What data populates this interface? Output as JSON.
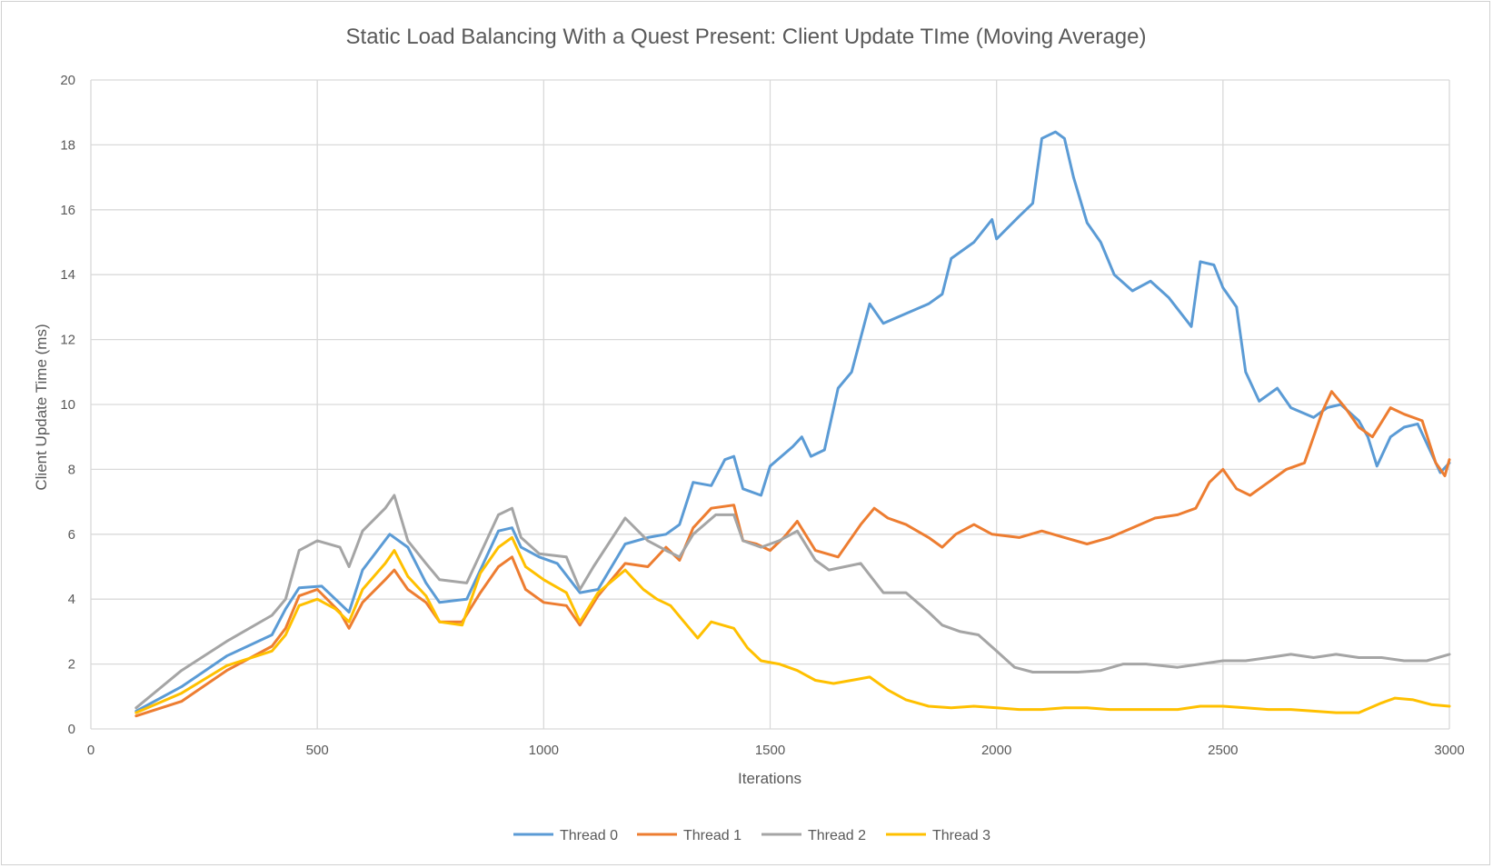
{
  "chart_data": {
    "type": "line",
    "title": "Static Load Balancing With a Quest Present: Client Update TIme (Moving Average)",
    "xlabel": "Iterations",
    "ylabel": "Client Update Time (ms)",
    "xlim": [
      0,
      3000
    ],
    "ylim": [
      0,
      20
    ],
    "x_ticks": [
      0,
      500,
      1000,
      1500,
      2000,
      2500,
      3000
    ],
    "y_ticks": [
      0,
      2,
      4,
      6,
      8,
      10,
      12,
      14,
      16,
      18,
      20
    ],
    "grid": true,
    "legend_position": "bottom",
    "series": [
      {
        "name": "Thread 0",
        "color": "#5b9bd5",
        "points": [
          [
            100,
            0.55
          ],
          [
            200,
            1.3
          ],
          [
            300,
            2.25
          ],
          [
            400,
            2.9
          ],
          [
            430,
            3.7
          ],
          [
            460,
            4.35
          ],
          [
            510,
            4.4
          ],
          [
            540,
            4.0
          ],
          [
            570,
            3.6
          ],
          [
            600,
            4.9
          ],
          [
            660,
            6.0
          ],
          [
            700,
            5.6
          ],
          [
            740,
            4.5
          ],
          [
            770,
            3.9
          ],
          [
            830,
            4.0
          ],
          [
            860,
            4.9
          ],
          [
            900,
            6.1
          ],
          [
            930,
            6.2
          ],
          [
            950,
            5.6
          ],
          [
            990,
            5.3
          ],
          [
            1030,
            5.1
          ],
          [
            1080,
            4.2
          ],
          [
            1120,
            4.3
          ],
          [
            1180,
            5.7
          ],
          [
            1230,
            5.9
          ],
          [
            1270,
            6.0
          ],
          [
            1300,
            6.3
          ],
          [
            1330,
            7.6
          ],
          [
            1370,
            7.5
          ],
          [
            1400,
            8.3
          ],
          [
            1420,
            8.4
          ],
          [
            1440,
            7.4
          ],
          [
            1480,
            7.2
          ],
          [
            1500,
            8.1
          ],
          [
            1550,
            8.7
          ],
          [
            1570,
            9.0
          ],
          [
            1590,
            8.4
          ],
          [
            1620,
            8.6
          ],
          [
            1650,
            10.5
          ],
          [
            1680,
            11.0
          ],
          [
            1720,
            13.1
          ],
          [
            1750,
            12.5
          ],
          [
            1800,
            12.8
          ],
          [
            1850,
            13.1
          ],
          [
            1880,
            13.4
          ],
          [
            1900,
            14.5
          ],
          [
            1950,
            15.0
          ],
          [
            1990,
            15.7
          ],
          [
            2000,
            15.1
          ],
          [
            2050,
            15.8
          ],
          [
            2080,
            16.2
          ],
          [
            2100,
            18.2
          ],
          [
            2130,
            18.4
          ],
          [
            2150,
            18.2
          ],
          [
            2170,
            17.0
          ],
          [
            2200,
            15.6
          ],
          [
            2230,
            15.0
          ],
          [
            2260,
            14.0
          ],
          [
            2300,
            13.5
          ],
          [
            2340,
            13.8
          ],
          [
            2380,
            13.3
          ],
          [
            2430,
            12.4
          ],
          [
            2450,
            14.4
          ],
          [
            2480,
            14.3
          ],
          [
            2500,
            13.6
          ],
          [
            2530,
            13.0
          ],
          [
            2550,
            11.0
          ],
          [
            2580,
            10.1
          ],
          [
            2620,
            10.5
          ],
          [
            2650,
            9.9
          ],
          [
            2700,
            9.6
          ],
          [
            2730,
            9.9
          ],
          [
            2760,
            10.0
          ],
          [
            2800,
            9.5
          ],
          [
            2820,
            9.0
          ],
          [
            2840,
            8.1
          ],
          [
            2870,
            9.0
          ],
          [
            2900,
            9.3
          ],
          [
            2930,
            9.4
          ],
          [
            2960,
            8.5
          ],
          [
            2980,
            7.9
          ],
          [
            3000,
            8.2
          ]
        ]
      },
      {
        "name": "Thread 1",
        "color": "#ed7d31",
        "points": [
          [
            100,
            0.4
          ],
          [
            200,
            0.85
          ],
          [
            300,
            1.8
          ],
          [
            400,
            2.55
          ],
          [
            430,
            3.1
          ],
          [
            460,
            4.1
          ],
          [
            500,
            4.3
          ],
          [
            550,
            3.6
          ],
          [
            570,
            3.1
          ],
          [
            600,
            3.9
          ],
          [
            650,
            4.6
          ],
          [
            670,
            4.9
          ],
          [
            700,
            4.3
          ],
          [
            740,
            3.9
          ],
          [
            770,
            3.3
          ],
          [
            820,
            3.3
          ],
          [
            860,
            4.2
          ],
          [
            900,
            5.0
          ],
          [
            930,
            5.3
          ],
          [
            960,
            4.3
          ],
          [
            1000,
            3.9
          ],
          [
            1050,
            3.8
          ],
          [
            1080,
            3.2
          ],
          [
            1120,
            4.1
          ],
          [
            1180,
            5.1
          ],
          [
            1230,
            5.0
          ],
          [
            1270,
            5.6
          ],
          [
            1300,
            5.2
          ],
          [
            1330,
            6.2
          ],
          [
            1370,
            6.8
          ],
          [
            1420,
            6.9
          ],
          [
            1440,
            5.8
          ],
          [
            1470,
            5.7
          ],
          [
            1500,
            5.5
          ],
          [
            1530,
            5.9
          ],
          [
            1560,
            6.4
          ],
          [
            1600,
            5.5
          ],
          [
            1650,
            5.3
          ],
          [
            1700,
            6.3
          ],
          [
            1730,
            6.8
          ],
          [
            1760,
            6.5
          ],
          [
            1800,
            6.3
          ],
          [
            1850,
            5.9
          ],
          [
            1880,
            5.6
          ],
          [
            1910,
            6.0
          ],
          [
            1950,
            6.3
          ],
          [
            1990,
            6.0
          ],
          [
            2050,
            5.9
          ],
          [
            2100,
            6.1
          ],
          [
            2150,
            5.9
          ],
          [
            2200,
            5.7
          ],
          [
            2250,
            5.9
          ],
          [
            2300,
            6.2
          ],
          [
            2350,
            6.5
          ],
          [
            2400,
            6.6
          ],
          [
            2440,
            6.8
          ],
          [
            2470,
            7.6
          ],
          [
            2500,
            8.0
          ],
          [
            2530,
            7.4
          ],
          [
            2560,
            7.2
          ],
          [
            2600,
            7.6
          ],
          [
            2640,
            8.0
          ],
          [
            2680,
            8.2
          ],
          [
            2720,
            9.8
          ],
          [
            2740,
            10.4
          ],
          [
            2770,
            9.9
          ],
          [
            2800,
            9.3
          ],
          [
            2830,
            9.0
          ],
          [
            2870,
            9.9
          ],
          [
            2900,
            9.7
          ],
          [
            2940,
            9.5
          ],
          [
            2970,
            8.2
          ],
          [
            2990,
            7.8
          ],
          [
            3000,
            8.3
          ]
        ]
      },
      {
        "name": "Thread 2",
        "color": "#a5a5a5",
        "points": [
          [
            100,
            0.65
          ],
          [
            200,
            1.8
          ],
          [
            300,
            2.7
          ],
          [
            400,
            3.5
          ],
          [
            430,
            4.0
          ],
          [
            460,
            5.5
          ],
          [
            500,
            5.8
          ],
          [
            550,
            5.6
          ],
          [
            570,
            5.0
          ],
          [
            600,
            6.1
          ],
          [
            650,
            6.8
          ],
          [
            670,
            7.2
          ],
          [
            700,
            5.8
          ],
          [
            740,
            5.1
          ],
          [
            770,
            4.6
          ],
          [
            830,
            4.5
          ],
          [
            860,
            5.4
          ],
          [
            900,
            6.6
          ],
          [
            930,
            6.8
          ],
          [
            950,
            5.9
          ],
          [
            990,
            5.4
          ],
          [
            1050,
            5.3
          ],
          [
            1080,
            4.3
          ],
          [
            1110,
            5.0
          ],
          [
            1180,
            6.5
          ],
          [
            1230,
            5.8
          ],
          [
            1270,
            5.5
          ],
          [
            1300,
            5.3
          ],
          [
            1330,
            6.0
          ],
          [
            1380,
            6.6
          ],
          [
            1420,
            6.6
          ],
          [
            1440,
            5.8
          ],
          [
            1480,
            5.6
          ],
          [
            1520,
            5.8
          ],
          [
            1560,
            6.1
          ],
          [
            1600,
            5.2
          ],
          [
            1630,
            4.9
          ],
          [
            1700,
            5.1
          ],
          [
            1750,
            4.2
          ],
          [
            1800,
            4.2
          ],
          [
            1850,
            3.6
          ],
          [
            1880,
            3.2
          ],
          [
            1920,
            3.0
          ],
          [
            1960,
            2.9
          ],
          [
            2000,
            2.4
          ],
          [
            2040,
            1.9
          ],
          [
            2080,
            1.75
          ],
          [
            2130,
            1.75
          ],
          [
            2180,
            1.75
          ],
          [
            2230,
            1.8
          ],
          [
            2280,
            2.0
          ],
          [
            2330,
            2.0
          ],
          [
            2400,
            1.9
          ],
          [
            2450,
            2.0
          ],
          [
            2500,
            2.1
          ],
          [
            2550,
            2.1
          ],
          [
            2600,
            2.2
          ],
          [
            2650,
            2.3
          ],
          [
            2700,
            2.2
          ],
          [
            2750,
            2.3
          ],
          [
            2800,
            2.2
          ],
          [
            2850,
            2.2
          ],
          [
            2900,
            2.1
          ],
          [
            2950,
            2.1
          ],
          [
            3000,
            2.3
          ]
        ]
      },
      {
        "name": "Thread 3",
        "color": "#ffc000",
        "points": [
          [
            100,
            0.5
          ],
          [
            200,
            1.1
          ],
          [
            300,
            1.95
          ],
          [
            400,
            2.4
          ],
          [
            430,
            2.9
          ],
          [
            460,
            3.8
          ],
          [
            500,
            4.0
          ],
          [
            540,
            3.7
          ],
          [
            570,
            3.3
          ],
          [
            600,
            4.3
          ],
          [
            650,
            5.1
          ],
          [
            670,
            5.5
          ],
          [
            700,
            4.7
          ],
          [
            740,
            4.1
          ],
          [
            770,
            3.3
          ],
          [
            820,
            3.2
          ],
          [
            860,
            4.8
          ],
          [
            900,
            5.6
          ],
          [
            930,
            5.9
          ],
          [
            960,
            5.0
          ],
          [
            1000,
            4.6
          ],
          [
            1050,
            4.2
          ],
          [
            1080,
            3.3
          ],
          [
            1120,
            4.2
          ],
          [
            1180,
            4.9
          ],
          [
            1220,
            4.3
          ],
          [
            1250,
            4.0
          ],
          [
            1280,
            3.8
          ],
          [
            1310,
            3.3
          ],
          [
            1340,
            2.8
          ],
          [
            1370,
            3.3
          ],
          [
            1420,
            3.1
          ],
          [
            1450,
            2.5
          ],
          [
            1480,
            2.1
          ],
          [
            1520,
            2.0
          ],
          [
            1560,
            1.8
          ],
          [
            1600,
            1.5
          ],
          [
            1640,
            1.4
          ],
          [
            1680,
            1.5
          ],
          [
            1720,
            1.6
          ],
          [
            1760,
            1.2
          ],
          [
            1800,
            0.9
          ],
          [
            1850,
            0.7
          ],
          [
            1900,
            0.65
          ],
          [
            1950,
            0.7
          ],
          [
            2000,
            0.65
          ],
          [
            2050,
            0.6
          ],
          [
            2100,
            0.6
          ],
          [
            2150,
            0.65
          ],
          [
            2200,
            0.65
          ],
          [
            2250,
            0.6
          ],
          [
            2300,
            0.6
          ],
          [
            2350,
            0.6
          ],
          [
            2400,
            0.6
          ],
          [
            2450,
            0.7
          ],
          [
            2500,
            0.7
          ],
          [
            2550,
            0.65
          ],
          [
            2600,
            0.6
          ],
          [
            2650,
            0.6
          ],
          [
            2700,
            0.55
          ],
          [
            2750,
            0.5
          ],
          [
            2800,
            0.5
          ],
          [
            2850,
            0.8
          ],
          [
            2880,
            0.95
          ],
          [
            2920,
            0.9
          ],
          [
            2960,
            0.75
          ],
          [
            3000,
            0.7
          ]
        ]
      }
    ]
  }
}
